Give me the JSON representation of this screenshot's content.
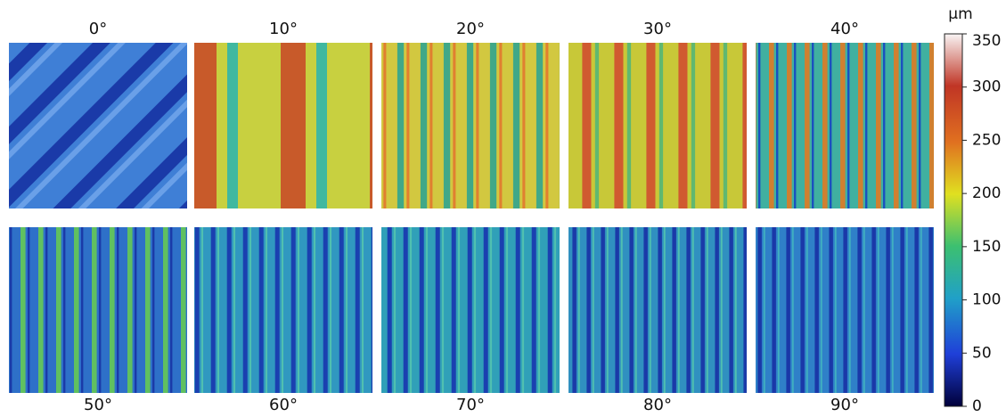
{
  "panels": [
    {
      "label": "0°"
    },
    {
      "label": "10°"
    },
    {
      "label": "20°"
    },
    {
      "label": "30°"
    },
    {
      "label": "40°"
    },
    {
      "label": "50°"
    },
    {
      "label": "60°"
    },
    {
      "label": "70°"
    },
    {
      "label": "80°"
    },
    {
      "label": "90°"
    }
  ],
  "colorbar": {
    "unit": "µm",
    "range": [
      0,
      350
    ],
    "ticks": [
      0,
      50,
      100,
      150,
      200,
      250,
      300,
      350
    ]
  }
}
